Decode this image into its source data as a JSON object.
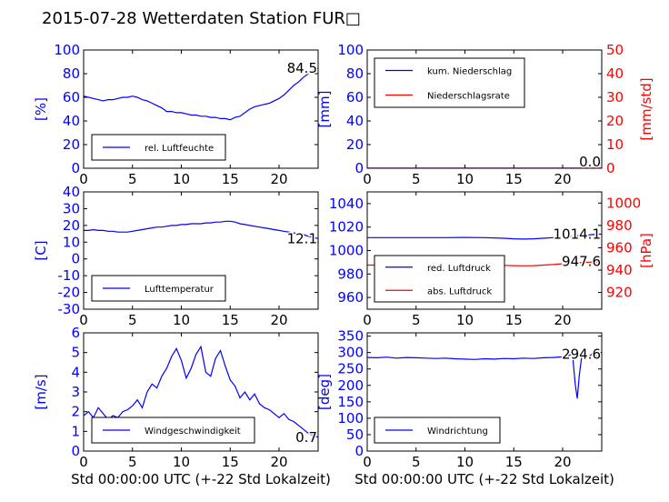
{
  "title": "2015-07-28 Wetterdaten Station FUR□",
  "xlabel": "Std 00:00:00 UTC (+-22 Std Lokalzeit)",
  "colors": {
    "blue": "#0000ff",
    "red": "#ff0000",
    "axis": "#000000"
  },
  "chart_data": [
    {
      "id": "humidity",
      "type": "line",
      "xlim": [
        0,
        24
      ],
      "ylim": [
        0,
        100
      ],
      "xticks": [
        0,
        5,
        10,
        15,
        20
      ],
      "yticks": [
        0,
        20,
        40,
        60,
        80,
        100
      ],
      "ylabel": "[%]",
      "last_value": "84.5",
      "legend": {
        "placement": "lower-left",
        "entries": [
          "rel. Luftfeuchte"
        ]
      },
      "series": [
        {
          "name": "rel. Luftfeuchte",
          "color": "#0000ff",
          "x": [
            0,
            0.5,
            1,
            1.5,
            2,
            2.5,
            3,
            3.5,
            4,
            4.5,
            5,
            5.5,
            6,
            6.5,
            7,
            7.5,
            8,
            8.5,
            9,
            9.5,
            10,
            10.5,
            11,
            11.5,
            12,
            12.5,
            13,
            13.5,
            14,
            14.5,
            15,
            15.5,
            16,
            16.5,
            17,
            17.5,
            18,
            18.5,
            19,
            19.5,
            20,
            20.5,
            21,
            21.5,
            22,
            22.5,
            23,
            23.5,
            24
          ],
          "y": [
            61,
            60,
            59,
            58,
            57,
            58,
            58,
            59,
            60,
            60,
            61,
            60,
            58,
            57,
            55,
            53,
            51,
            48,
            48,
            47,
            47,
            46,
            45,
            45,
            44,
            44,
            43,
            43,
            42,
            42,
            41,
            43,
            44,
            47,
            50,
            52,
            53,
            54,
            55,
            57,
            59,
            62,
            66,
            70,
            73,
            77,
            80,
            83,
            84.5
          ]
        }
      ]
    },
    {
      "id": "precip",
      "type": "line",
      "xlim": [
        0,
        24
      ],
      "ylim": [
        0,
        100
      ],
      "ylim_right": [
        0,
        50
      ],
      "xticks": [
        0,
        5,
        10,
        15,
        20
      ],
      "yticks": [
        0,
        20,
        40,
        60,
        80,
        100
      ],
      "yticks_right": [
        0,
        10,
        20,
        30,
        40,
        50
      ],
      "ylabel": "[mm]",
      "ylabel_right": "[mm/std]",
      "last_value": "0.0",
      "last_value_2": "0.0",
      "legend": {
        "placement": "upper-left",
        "entries": [
          "kum. Niederschlag",
          "Niederschlagsrate"
        ]
      },
      "series": [
        {
          "name": "kum. Niederschlag",
          "color": "#0000ff",
          "axis": "left",
          "x": [
            0,
            24
          ],
          "y": [
            0,
            0
          ]
        },
        {
          "name": "Niederschlagsrate",
          "color": "#ff0000",
          "axis": "right",
          "x": [
            0,
            24
          ],
          "y": [
            0,
            0
          ]
        }
      ]
    },
    {
      "id": "temperature",
      "type": "line",
      "xlim": [
        0,
        24
      ],
      "ylim": [
        -30,
        40
      ],
      "xticks": [
        0,
        5,
        10,
        15,
        20
      ],
      "yticks": [
        -30,
        -20,
        -10,
        0,
        10,
        20,
        30,
        40
      ],
      "ylabel": "[C]",
      "last_value": "12.1",
      "legend": {
        "placement": "lower-left",
        "entries": [
          "Lufttemperatur"
        ]
      },
      "series": [
        {
          "name": "Lufttemperatur",
          "color": "#0000ff",
          "x": [
            0,
            0.5,
            1,
            1.5,
            2,
            2.5,
            3,
            3.5,
            4,
            4.5,
            5,
            5.5,
            6,
            6.5,
            7,
            7.5,
            8,
            8.5,
            9,
            9.5,
            10,
            10.5,
            11,
            11.5,
            12,
            12.5,
            13,
            13.5,
            14,
            14.5,
            15,
            15.5,
            16,
            16.5,
            17,
            17.5,
            18,
            18.5,
            19,
            19.5,
            20,
            20.5,
            21,
            21.5,
            22,
            22.5,
            23,
            23.5,
            24
          ],
          "y": [
            17,
            17,
            17.5,
            17,
            17,
            16.5,
            16.5,
            16,
            16,
            16,
            16.5,
            17,
            17.5,
            18,
            18.5,
            19,
            19,
            19.5,
            20,
            20,
            20.5,
            20.5,
            21,
            21,
            21,
            21.5,
            21.5,
            22,
            22,
            22.5,
            22.5,
            22,
            21,
            20.5,
            20,
            19.5,
            19,
            18.5,
            18,
            17.5,
            17,
            16.5,
            16,
            15.5,
            15,
            14.5,
            13.5,
            12.8,
            12.1
          ]
        }
      ]
    },
    {
      "id": "pressure",
      "type": "line",
      "xlim": [
        0,
        24
      ],
      "ylim": [
        950,
        1050
      ],
      "ylim_right": [
        905,
        1010
      ],
      "xticks": [
        0,
        5,
        10,
        15,
        20
      ],
      "yticks": [
        960,
        980,
        1000,
        1020,
        1040
      ],
      "yticks_right": [
        920,
        940,
        960,
        980,
        1000
      ],
      "ylabel_right": "[hPa]",
      "last_value": "1014.1",
      "last_value_2": "947.6",
      "legend": {
        "placement": "lower-left",
        "entries": [
          "red. Luftdruck",
          "abs. Luftdruck"
        ]
      },
      "series": [
        {
          "name": "red. Luftdruck",
          "color": "#0000ff",
          "axis": "left",
          "x": [
            0,
            2,
            4,
            6,
            8,
            10,
            12,
            14,
            15,
            16,
            17,
            18,
            19,
            20,
            21,
            22,
            23,
            24
          ],
          "y": [
            1011,
            1011,
            1011,
            1011,
            1011,
            1011.2,
            1011,
            1010.5,
            1010,
            1009.8,
            1010,
            1010.5,
            1011,
            1011.5,
            1012,
            1013,
            1013.6,
            1014.1
          ]
        },
        {
          "name": "abs. Luftdruck",
          "color": "#ff0000",
          "axis": "right",
          "x": [
            0,
            2,
            4,
            6,
            8,
            10,
            12,
            14,
            15,
            16,
            17,
            18,
            19,
            20,
            21,
            22,
            23,
            24
          ],
          "y": [
            944.5,
            944.5,
            944.6,
            944.6,
            944.7,
            944.7,
            944.6,
            944.2,
            944,
            943.8,
            944,
            944.5,
            945,
            945.7,
            946.2,
            946.8,
            947.2,
            947.6
          ]
        }
      ]
    },
    {
      "id": "wind_speed",
      "type": "line",
      "xlim": [
        0,
        24
      ],
      "ylim": [
        0,
        6
      ],
      "xticks": [
        0,
        5,
        10,
        15,
        20
      ],
      "yticks": [
        0,
        1,
        2,
        3,
        4,
        5,
        6
      ],
      "ylabel": "[m/s]",
      "last_value": "0.7",
      "legend": {
        "placement": "lower-left",
        "entries": [
          "Windgeschwindigkeit"
        ]
      },
      "series": [
        {
          "name": "Windgeschwindigkeit",
          "color": "#0000ff",
          "x": [
            0,
            0.5,
            1,
            1.5,
            2,
            2.5,
            3,
            3.5,
            4,
            4.5,
            5,
            5.5,
            6,
            6.5,
            7,
            7.5,
            8,
            8.5,
            9,
            9.5,
            10,
            10.5,
            11,
            11.5,
            12,
            12.5,
            13,
            13.5,
            14,
            14.5,
            15,
            15.5,
            16,
            16.5,
            17,
            17.5,
            18,
            18.5,
            19,
            19.5,
            20,
            20.5,
            21,
            21.5,
            22,
            22.5,
            23,
            23.5,
            24
          ],
          "y": [
            1.8,
            2.0,
            1.7,
            2.2,
            1.9,
            1.6,
            1.8,
            1.7,
            2.0,
            2.1,
            2.3,
            2.6,
            2.2,
            3.0,
            3.4,
            3.2,
            3.8,
            4.2,
            4.8,
            5.2,
            4.6,
            3.7,
            4.2,
            4.9,
            5.3,
            4.0,
            3.8,
            4.7,
            5.1,
            4.3,
            3.6,
            3.3,
            2.7,
            3.0,
            2.6,
            2.9,
            2.4,
            2.2,
            2.1,
            1.9,
            1.7,
            1.9,
            1.6,
            1.5,
            1.3,
            1.1,
            0.9,
            0.8,
            0.7
          ]
        }
      ]
    },
    {
      "id": "wind_dir",
      "type": "line",
      "xlim": [
        0,
        24
      ],
      "ylim": [
        0,
        360
      ],
      "xticks": [
        0,
        5,
        10,
        15,
        20
      ],
      "yticks": [
        0,
        50,
        100,
        150,
        200,
        250,
        300,
        350
      ],
      "ylabel": "[deg]",
      "last_value": "294.6",
      "legend": {
        "placement": "lower-left",
        "entries": [
          "Windrichtung"
        ]
      },
      "series": [
        {
          "name": "Windrichtung",
          "color": "#0000ff",
          "x": [
            0,
            1,
            2,
            3,
            4,
            5,
            6,
            7,
            8,
            9,
            10,
            11,
            12,
            13,
            14,
            15,
            16,
            17,
            18,
            19,
            20,
            20.5,
            21,
            21.3,
            21.5,
            21.7,
            22,
            22.5,
            23,
            23.5,
            24
          ],
          "y": [
            285,
            284,
            286,
            283,
            285,
            284,
            283,
            282,
            283,
            281,
            280,
            279,
            281,
            280,
            282,
            281,
            283,
            282,
            284,
            285,
            287,
            290,
            295,
            200,
            160,
            230,
            300,
            285,
            295,
            288,
            294.6
          ]
        }
      ]
    }
  ]
}
